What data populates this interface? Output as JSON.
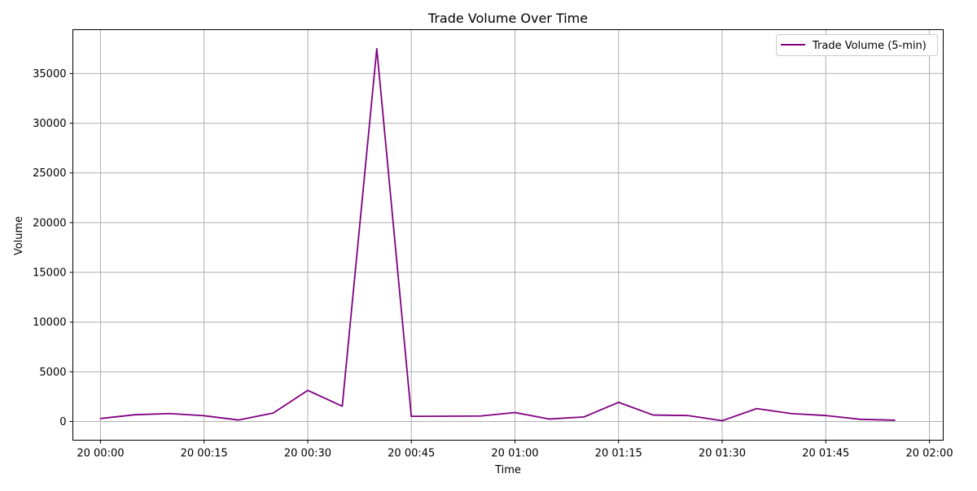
{
  "chart_data": {
    "type": "line",
    "title": "Trade Volume Over Time",
    "xlabel": "Time",
    "ylabel": "Volume",
    "grid": true,
    "legend_position": "top-right",
    "x": [
      "20 00:00",
      "20 00:05",
      "20 00:10",
      "20 00:15",
      "20 00:20",
      "20 00:25",
      "20 00:30",
      "20 00:35",
      "20 00:40",
      "20 00:45",
      "20 00:50",
      "20 00:55",
      "20 01:00",
      "20 01:05",
      "20 01:10",
      "20 01:15",
      "20 01:20",
      "20 01:25",
      "20 01:30",
      "20 01:35",
      "20 01:40",
      "20 01:45",
      "20 01:50",
      "20 01:55"
    ],
    "x_tick_labels": [
      "20 00:00",
      "20 00:15",
      "20 00:30",
      "20 00:45",
      "20 01:00",
      "20 01:15",
      "20 01:30",
      "20 01:45",
      "20 02:00"
    ],
    "y_ticks": [
      0,
      5000,
      10000,
      15000,
      20000,
      25000,
      30000,
      35000
    ],
    "ylim": [
      -1880,
      39410
    ],
    "xlim": [
      "19 23:56",
      "20 02:02"
    ],
    "series": [
      {
        "name": "Trade Volume (5-min)",
        "color": "#800080",
        "values": [
          300,
          680,
          800,
          580,
          150,
          850,
          3130,
          1540,
          37500,
          520,
          530,
          550,
          900,
          250,
          460,
          1930,
          650,
          600,
          80,
          1300,
          800,
          600,
          220,
          130
        ]
      }
    ]
  }
}
